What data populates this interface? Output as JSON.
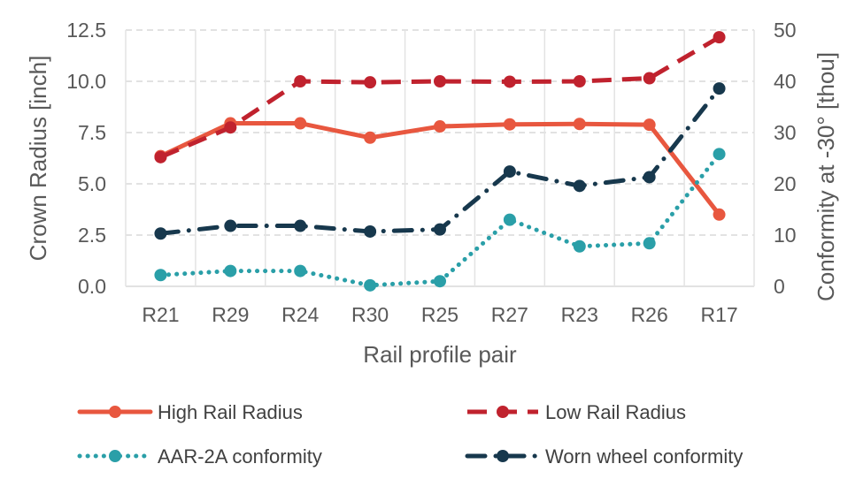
{
  "chart_data": {
    "type": "line",
    "categories": [
      "R21",
      "R29",
      "R24",
      "R30",
      "R25",
      "R27",
      "R23",
      "R26",
      "R17"
    ],
    "xlabel": "Rail profile pair",
    "ylabel": "Crown Radius [inch]",
    "y2label": "Conformity at -30° [thou]",
    "ylim": [
      0,
      12.5
    ],
    "y2lim": [
      0,
      50
    ],
    "yticks": [
      "0.0",
      "2.5",
      "5.0",
      "7.5",
      "10.0",
      "12.5"
    ],
    "y2ticks": [
      "0",
      "10",
      "20",
      "30",
      "40",
      "50"
    ],
    "grid": true,
    "legend_position": "bottom",
    "series": [
      {
        "name": "High Rail Radius",
        "axis": "left",
        "color": "#e8573f",
        "style": "solid",
        "values": [
          6.35,
          7.95,
          7.95,
          7.25,
          7.8,
          7.9,
          7.92,
          7.88,
          3.5
        ]
      },
      {
        "name": "Low Rail Radius",
        "axis": "left",
        "color": "#c0222e",
        "style": "dashed",
        "values": [
          6.3,
          7.75,
          10.0,
          9.95,
          10.0,
          9.98,
          10.0,
          10.15,
          12.15
        ]
      },
      {
        "name": "AAR-2A conformity",
        "axis": "right",
        "color": "#2a9fa8",
        "style": "dotted",
        "values": [
          2.2,
          3.0,
          3.0,
          0.2,
          1.0,
          13.0,
          7.8,
          8.4,
          25.8
        ]
      },
      {
        "name": "Worn wheel conformity",
        "axis": "right",
        "color": "#17384d",
        "style": "dashdot",
        "values": [
          10.3,
          11.8,
          11.8,
          10.7,
          11.1,
          22.4,
          19.6,
          21.3,
          38.6
        ]
      }
    ]
  }
}
